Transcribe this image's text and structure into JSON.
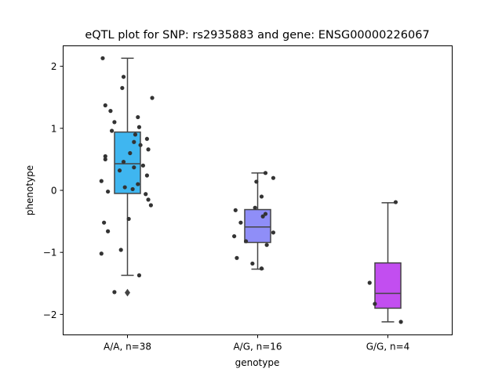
{
  "chart_data": {
    "type": "box",
    "title": "eQTL plot for SNP: rs2935883 and gene: ENSG00000226067",
    "xlabel": "genotype",
    "ylabel": "phenotype",
    "ylim": [
      -2.33,
      2.33
    ],
    "yticks": [
      -2,
      -1,
      0,
      1,
      2
    ],
    "categories": [
      "A/A, n=38",
      "A/G, n=16",
      "G/G, n=4"
    ],
    "box_colors": [
      "#3fb6f0",
      "#8f8ef8",
      "#c24ef0"
    ],
    "boxes": [
      {
        "q1": -0.05,
        "median": 0.43,
        "q3": 0.94,
        "whisker_low": -1.37,
        "whisker_high": 2.13,
        "outliers": [
          -1.65
        ]
      },
      {
        "q1": -0.84,
        "median": -0.59,
        "q3": -0.31,
        "whisker_low": -1.27,
        "whisker_high": 0.28,
        "outliers": []
      },
      {
        "q1": -1.9,
        "median": -1.66,
        "q3": -1.17,
        "whisker_low": -2.12,
        "whisker_high": -0.2,
        "outliers": []
      }
    ],
    "points": [
      [
        [
          -0.19,
          2.13
        ],
        [
          -0.03,
          1.83
        ],
        [
          -0.04,
          1.65
        ],
        [
          0.19,
          1.49
        ],
        [
          -0.17,
          1.37
        ],
        [
          -0.13,
          1.28
        ],
        [
          0.08,
          1.18
        ],
        [
          -0.1,
          1.1
        ],
        [
          0.09,
          1.02
        ],
        [
          -0.12,
          0.96
        ],
        [
          0.06,
          0.9
        ],
        [
          0.15,
          0.83
        ],
        [
          0.05,
          0.78
        ],
        [
          0.1,
          0.73
        ],
        [
          0.16,
          0.66
        ],
        [
          0.02,
          0.6
        ],
        [
          -0.17,
          0.55
        ],
        [
          -0.17,
          0.5
        ],
        [
          -0.03,
          0.46
        ],
        [
          0.12,
          0.4
        ],
        [
          0.05,
          0.37
        ],
        [
          -0.06,
          0.32
        ],
        [
          0.15,
          0.24
        ],
        [
          -0.2,
          0.15
        ],
        [
          0.08,
          0.1
        ],
        [
          -0.02,
          0.05
        ],
        [
          0.04,
          0.02
        ],
        [
          -0.15,
          -0.02
        ],
        [
          0.14,
          -0.06
        ],
        [
          0.16,
          -0.15
        ],
        [
          0.18,
          -0.24
        ],
        [
          0.01,
          -0.46
        ],
        [
          -0.18,
          -0.52
        ],
        [
          -0.15,
          -0.66
        ],
        [
          -0.05,
          -0.96
        ],
        [
          -0.2,
          -1.02
        ],
        [
          0.09,
          -1.37
        ],
        [
          -0.1,
          -1.64
        ]
      ],
      [
        [
          0.06,
          0.28
        ],
        [
          0.12,
          0.2
        ],
        [
          -0.01,
          0.14
        ],
        [
          0.03,
          -0.1
        ],
        [
          -0.02,
          -0.28
        ],
        [
          -0.17,
          -0.32
        ],
        [
          0.06,
          -0.38
        ],
        [
          0.04,
          -0.42
        ],
        [
          -0.13,
          -0.52
        ],
        [
          0.12,
          -0.68
        ],
        [
          -0.18,
          -0.74
        ],
        [
          -0.09,
          -0.82
        ],
        [
          0.07,
          -0.88
        ],
        [
          -0.16,
          -1.09
        ],
        [
          -0.04,
          -1.18
        ],
        [
          0.03,
          -1.26
        ]
      ],
      [
        [
          0.06,
          -0.19
        ],
        [
          -0.14,
          -1.49
        ],
        [
          -0.1,
          -1.83
        ],
        [
          0.1,
          -2.12
        ]
      ]
    ]
  }
}
